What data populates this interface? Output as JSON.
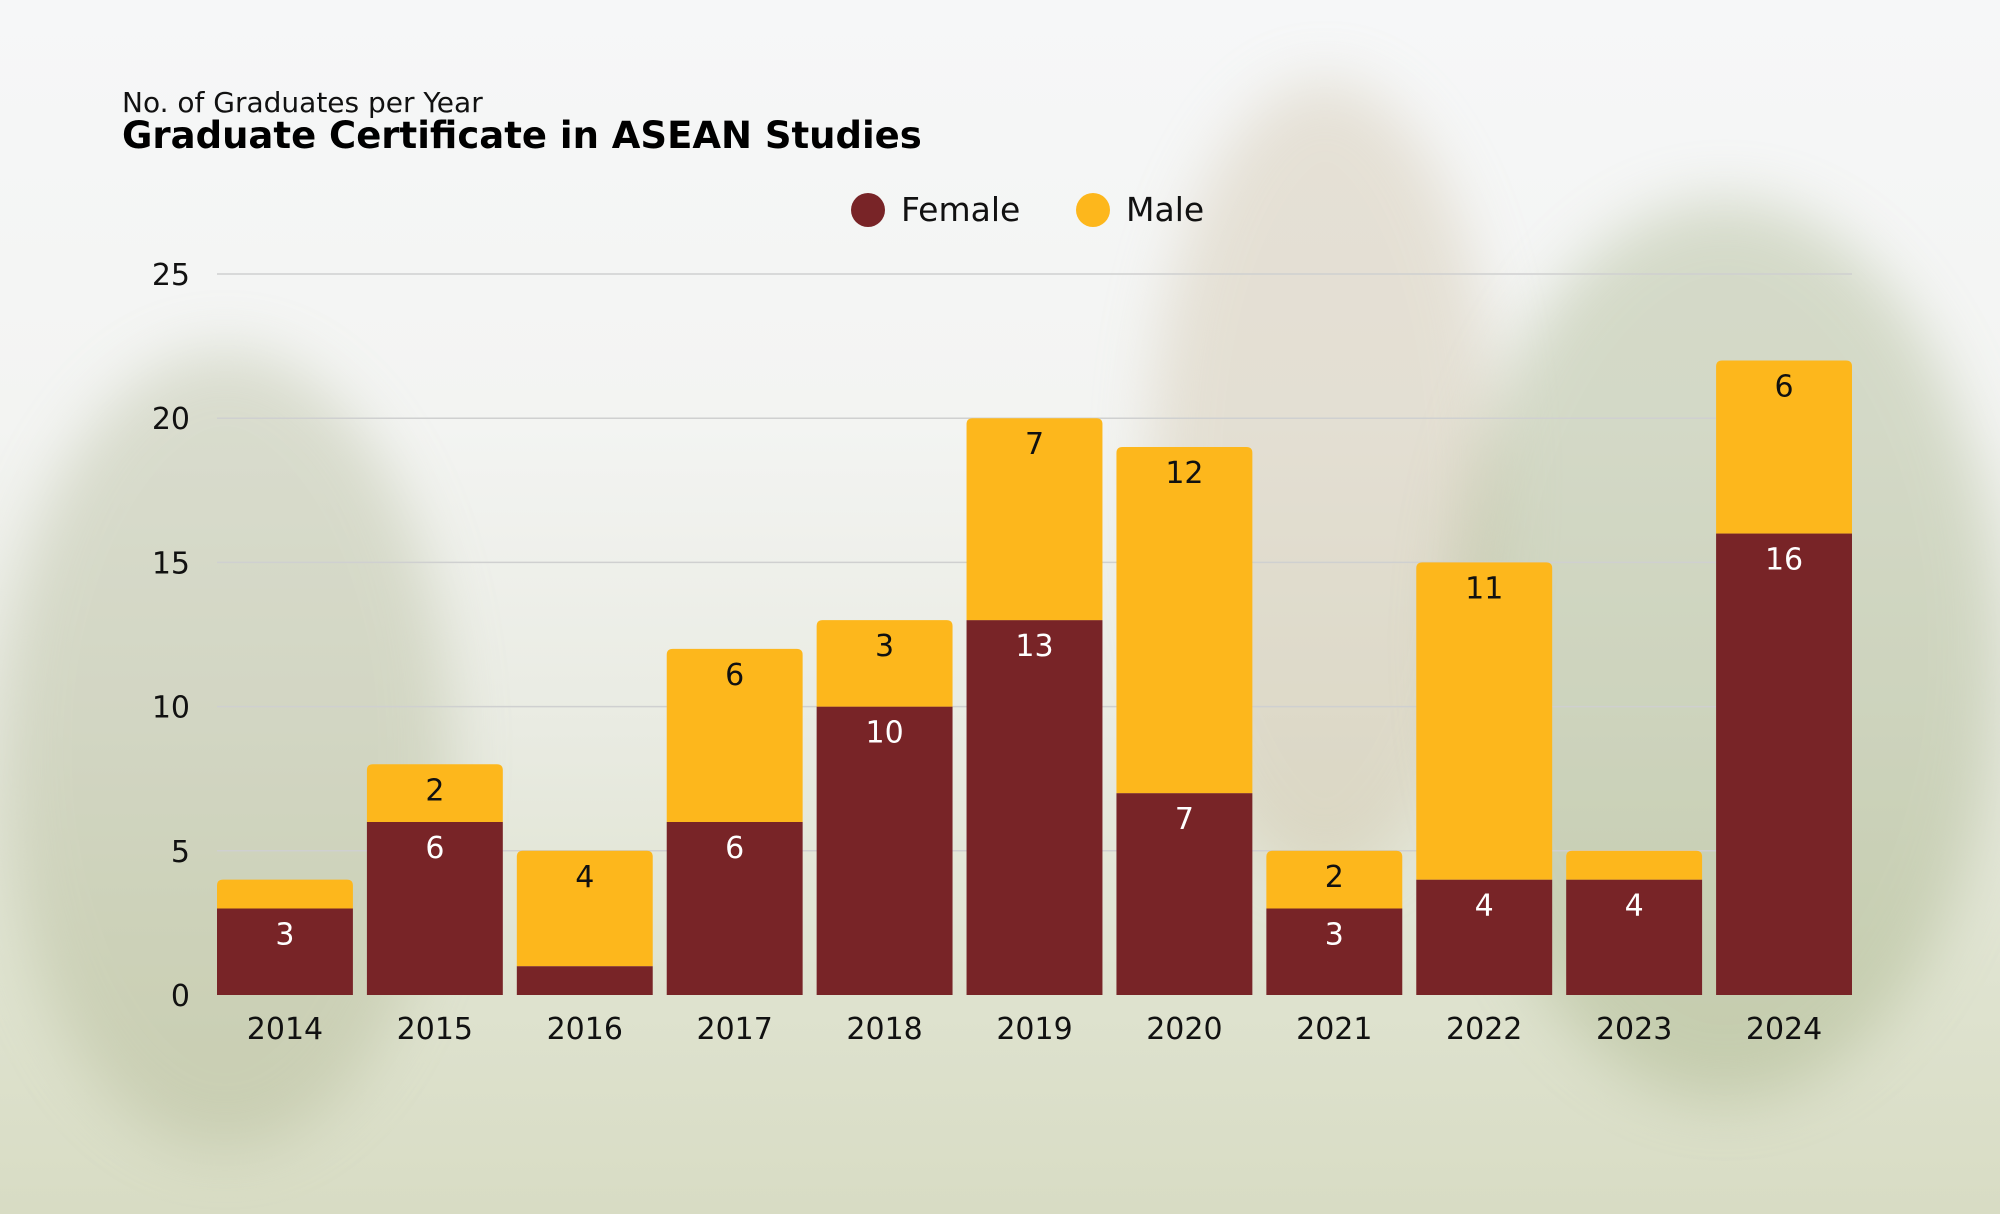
{
  "chart_data": {
    "type": "bar",
    "stacked": true,
    "subtitle": "No. of Graduates per Year",
    "title": "Graduate Certificate in ASEAN Studies",
    "categories": [
      "2014",
      "2015",
      "2016",
      "2017",
      "2018",
      "2019",
      "2020",
      "2021",
      "2022",
      "2023",
      "2024"
    ],
    "series": [
      {
        "name": "Female",
        "color": "#782427",
        "values": [
          3,
          6,
          1,
          6,
          10,
          13,
          7,
          3,
          4,
          4,
          16
        ],
        "labels": [
          "3",
          "6",
          "",
          "6",
          "10",
          "13",
          "7",
          "3",
          "4",
          "4",
          "16"
        ]
      },
      {
        "name": "Male",
        "color": "#FDB71C",
        "values": [
          1,
          2,
          4,
          6,
          3,
          7,
          12,
          2,
          11,
          1,
          6
        ],
        "labels": [
          "",
          "2",
          "4",
          "6",
          "3",
          "7",
          "12",
          "2",
          "11",
          "",
          ""
        ]
      }
    ],
    "yticks": [
      "0",
      "5",
      "10",
      "15",
      "20",
      "25"
    ],
    "ylim": [
      0,
      25
    ],
    "grid": true,
    "legend_position": "top-center",
    "xlabel": "",
    "ylabel": ""
  }
}
